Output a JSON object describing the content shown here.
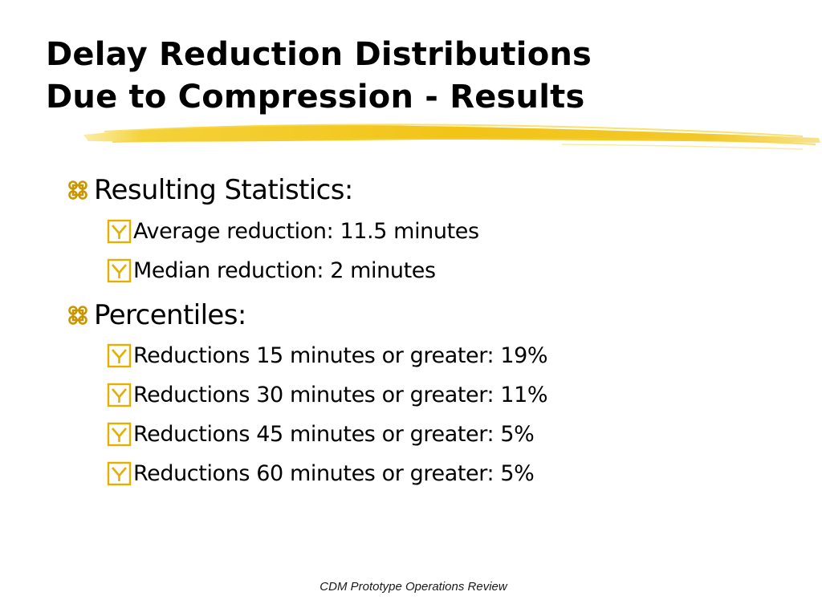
{
  "title": {
    "line1": "Delay Reduction Distributions",
    "line2": "Due to Compression - Results"
  },
  "colors": {
    "accent_yellow": "#f2c418",
    "accent_yellow_light": "#f7e06a",
    "text": "#000000"
  },
  "bullets": [
    {
      "label": "Resulting Statistics:",
      "icon": "command-icon",
      "children": [
        {
          "label": "Average reduction:  11.5 minutes",
          "icon": "yellow-checkbox-icon"
        },
        {
          "label": "Median reduction:  2 minutes",
          "icon": "yellow-checkbox-icon"
        }
      ]
    },
    {
      "label": "Percentiles:",
      "icon": "command-icon",
      "children": [
        {
          "label": "Reductions 15 minutes or greater:  19%",
          "icon": "yellow-checkbox-icon"
        },
        {
          "label": "Reductions 30 minutes or greater:  11%",
          "icon": "yellow-checkbox-icon"
        },
        {
          "label": "Reductions 45 minutes or greater:  5%",
          "icon": "yellow-checkbox-icon"
        },
        {
          "label": "Reductions 60 minutes or greater:  5%",
          "icon": "yellow-checkbox-icon"
        }
      ]
    }
  ],
  "footer": "CDM Prototype Operations Review"
}
